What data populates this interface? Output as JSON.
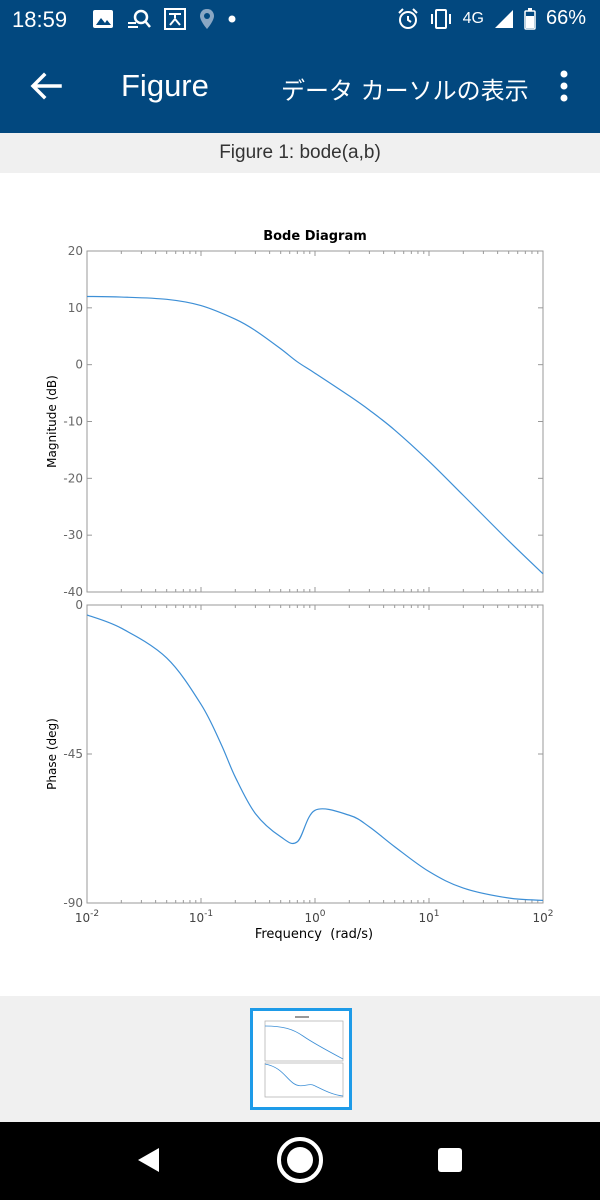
{
  "status": {
    "time": "18:59",
    "network": "4G",
    "battery": "66%"
  },
  "appbar": {
    "title": "Figure",
    "data_cursor": "データ カーソルの表示"
  },
  "figure_label": "Figure 1: bode(a,b)",
  "colors": {
    "bar": "#02487f",
    "line": "#3d8fd6",
    "thumb_border": "#1e9be8"
  },
  "chart_data": {
    "type": "line",
    "title": "Bode Diagram",
    "xlabel": "Frequency  (rad/s)",
    "xscale": "log",
    "xlim": [
      0.01,
      100
    ],
    "x_tick_labels": [
      "10-2",
      "10-1",
      "100",
      "101",
      "102"
    ],
    "grid": false,
    "panels": [
      {
        "ylabel": "Magnitude (dB)",
        "ylim": [
          -40,
          20
        ],
        "yticks": [
          20,
          10,
          0,
          -10,
          -20,
          -30,
          -40
        ],
        "x": [
          0.01,
          0.02,
          0.05,
          0.1,
          0.2,
          0.3,
          0.5,
          0.7,
          1,
          2,
          3,
          5,
          10,
          20,
          50,
          100
        ],
        "values": [
          12.0,
          11.9,
          11.5,
          10.4,
          8.0,
          6.0,
          2.8,
          0.5,
          -1.5,
          -5.5,
          -8.0,
          -11.5,
          -17.0,
          -23.0,
          -31.0,
          -36.8
        ]
      },
      {
        "ylabel": "Phase (deg)",
        "ylim": [
          -90,
          0
        ],
        "yticks": [
          0,
          -45,
          -90
        ],
        "x": [
          0.01,
          0.02,
          0.05,
          0.1,
          0.15,
          0.2,
          0.3,
          0.5,
          0.7,
          1,
          2,
          3,
          5,
          10,
          20,
          50,
          100
        ],
        "values": [
          -3,
          -7,
          -16,
          -30,
          -42,
          -52,
          -63,
          -70,
          -71.5,
          -62,
          -63.5,
          -67,
          -73,
          -80.5,
          -85.5,
          -88.5,
          -89.2
        ]
      }
    ]
  }
}
